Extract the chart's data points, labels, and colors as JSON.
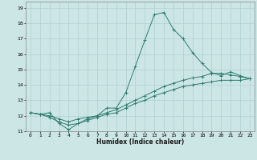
{
  "xlabel": "Humidex (Indice chaleur)",
  "ylabel": "",
  "bg_color": "#cce5e5",
  "line_color": "#2e7d6e",
  "grid_color": "#b0d0d0",
  "xlim": [
    -0.5,
    23.5
  ],
  "ylim": [
    11,
    19.4
  ],
  "xticks": [
    0,
    1,
    2,
    3,
    4,
    5,
    6,
    7,
    8,
    9,
    10,
    11,
    12,
    13,
    14,
    15,
    16,
    17,
    18,
    19,
    20,
    21,
    22,
    23
  ],
  "yticks": [
    11,
    12,
    13,
    14,
    15,
    16,
    17,
    18,
    19
  ],
  "lines": [
    {
      "x": [
        0,
        1,
        2,
        3,
        4,
        5,
        6,
        7,
        8,
        9,
        10,
        11,
        12,
        13,
        14,
        15,
        16,
        17,
        18,
        19,
        20,
        21,
        22,
        23
      ],
      "y": [
        12.2,
        12.1,
        12.2,
        11.5,
        11.1,
        11.5,
        11.8,
        12.0,
        12.5,
        12.5,
        13.5,
        15.2,
        16.9,
        18.55,
        18.7,
        17.6,
        17.0,
        16.1,
        15.4,
        14.8,
        14.6,
        14.85,
        14.6,
        14.4
      ]
    },
    {
      "x": [
        0,
        1,
        2,
        3,
        4,
        5,
        6,
        7,
        8,
        9,
        10,
        11,
        12,
        13,
        14,
        15,
        16,
        17,
        18,
        19,
        20,
        21,
        22,
        23
      ],
      "y": [
        12.2,
        12.1,
        12.0,
        11.8,
        11.6,
        11.8,
        11.9,
        12.0,
        12.2,
        12.4,
        12.7,
        13.0,
        13.3,
        13.6,
        13.9,
        14.1,
        14.3,
        14.45,
        14.55,
        14.75,
        14.75,
        14.65,
        14.55,
        14.4
      ]
    },
    {
      "x": [
        0,
        1,
        2,
        3,
        4,
        5,
        6,
        7,
        8,
        9,
        10,
        11,
        12,
        13,
        14,
        15,
        16,
        17,
        18,
        19,
        20,
        21,
        22,
        23
      ],
      "y": [
        12.2,
        12.1,
        11.9,
        11.6,
        11.4,
        11.5,
        11.7,
        11.9,
        12.1,
        12.2,
        12.5,
        12.8,
        13.0,
        13.3,
        13.5,
        13.7,
        13.9,
        14.0,
        14.1,
        14.2,
        14.3,
        14.3,
        14.3,
        14.4
      ]
    }
  ]
}
